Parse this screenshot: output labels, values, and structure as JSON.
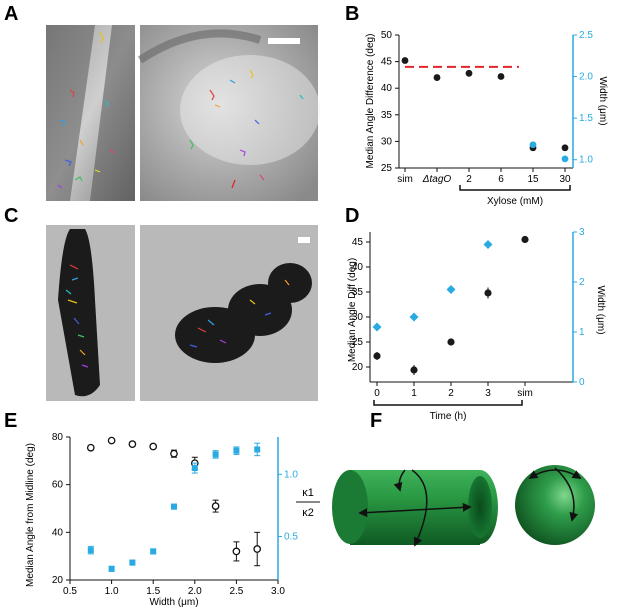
{
  "panels": {
    "A": "A",
    "B": "B",
    "C": "C",
    "D": "D",
    "E": "E",
    "F": "F"
  },
  "colors": {
    "black": "#1a1a1a",
    "cyan": "#29abe2",
    "red_dashed": "#e0262b",
    "tube_green": "#1f8a3a"
  },
  "chart_data": [
    {
      "panel": "B",
      "type": "scatter",
      "categories": [
        "sim",
        "ΔtagO",
        "2",
        "6",
        "15",
        "30"
      ],
      "group_label": "Xylose (mM)",
      "ylabel": "Median Angle Difference (deg)",
      "y2label": "Width (μm)",
      "ylim": [
        25,
        50
      ],
      "y_ticks": [
        "25",
        "30",
        "35",
        "40",
        "45",
        "50"
      ],
      "y2lim": [
        0.9,
        2.5
      ],
      "y2_ticks": [
        "1.0",
        "1.5",
        "2.0",
        "2.5"
      ],
      "reference_line": 44,
      "series": [
        {
          "color": "black",
          "values": [
            45.2,
            42.0,
            42.8,
            42.2,
            28.8,
            28.8
          ]
        },
        {
          "color": "cyan",
          "values": [
            null,
            null,
            null,
            null,
            1.18,
            1.01
          ]
        }
      ]
    },
    {
      "panel": "D",
      "type": "scatter",
      "categories": [
        "0",
        "1",
        "2",
        "3",
        "sim"
      ],
      "group_label": "Time (h)",
      "ylabel": "Median Angle Diff (deg)",
      "y2label": "Width (μm)",
      "ylim": [
        17,
        47
      ],
      "y_ticks": [
        "20",
        "25",
        "30",
        "35",
        "40",
        "45"
      ],
      "y2lim": [
        0,
        3
      ],
      "y2_ticks": [
        "0",
        "1",
        "2",
        "3"
      ],
      "series": [
        {
          "color": "black",
          "values": [
            22.2,
            19.4,
            25.0,
            34.8,
            45.5
          ],
          "err": [
            0.8,
            1.0,
            0.3,
            1.1,
            0.2
          ]
        },
        {
          "color": "cyan",
          "values": [
            1.1,
            1.3,
            1.85,
            2.75,
            null
          ]
        }
      ]
    },
    {
      "panel": "E",
      "type": "scatter",
      "xlabel": "Width (μm)",
      "ylabel": "Median Angle from Midline (deg)",
      "y2label_top": "κ1",
      "y2label_bottom": "κ2",
      "xlim": [
        0.5,
        3.0
      ],
      "x_ticks": [
        "0.5",
        "1.0",
        "1.5",
        "2.0",
        "2.5",
        "3.0"
      ],
      "ylim": [
        20,
        80
      ],
      "y_ticks": [
        "20",
        "40",
        "60",
        "80"
      ],
      "y2lim": [
        0.15,
        1.3
      ],
      "y2_ticks": [
        "0.5",
        "1.0"
      ],
      "series": [
        {
          "marker": "open-circle",
          "color": "black",
          "x": [
            0.75,
            1.0,
            1.25,
            1.5,
            1.75,
            2.0,
            2.25,
            2.5,
            2.75
          ],
          "y": [
            75.5,
            78.5,
            77,
            76,
            73,
            69,
            51,
            32,
            33
          ],
          "err": [
            0.8,
            0.8,
            0.8,
            0.8,
            1.5,
            2.5,
            2.5,
            4,
            7
          ]
        },
        {
          "marker": "square",
          "color": "cyan",
          "x": [
            0.75,
            1.0,
            1.25,
            1.5,
            1.75,
            2.0,
            2.25,
            2.5,
            2.75
          ],
          "y2": [
            0.39,
            0.24,
            0.29,
            0.38,
            0.74,
            1.05,
            1.16,
            1.19,
            1.2
          ],
          "err": [
            0.03,
            0.02,
            0.02,
            0.02,
            0.02,
            0.04,
            0.03,
            0.03,
            0.05
          ]
        }
      ]
    }
  ]
}
